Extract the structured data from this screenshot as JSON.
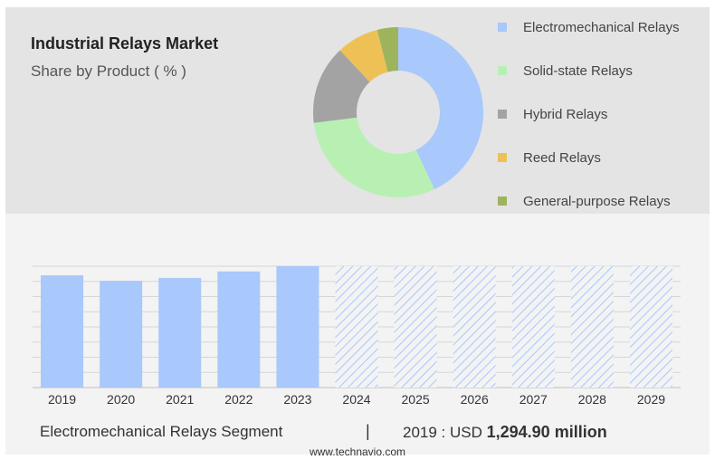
{
  "header": {
    "title": "Industrial Relays Market",
    "subtitle": "Share by Product ( % )"
  },
  "chart_data": [
    {
      "type": "pie",
      "donut": true,
      "slices": [
        {
          "label": "Electromechanical Relays",
          "value": 43,
          "color": "#a9c8fb"
        },
        {
          "label": "Solid-state Relays",
          "value": 30,
          "color": "#b8f0b4"
        },
        {
          "label": "Hybrid Relays",
          "value": 15,
          "color": "#a3a3a3"
        },
        {
          "label": "Reed Relays",
          "value": 8,
          "color": "#eec156"
        },
        {
          "label": "General-purpose Relays",
          "value": 4,
          "color": "#9db45d"
        }
      ],
      "legend_position": "right"
    },
    {
      "type": "bar",
      "categories": [
        "2019",
        "2020",
        "2021",
        "2022",
        "2023",
        "2024",
        "2025",
        "2026",
        "2027",
        "2028",
        "2029"
      ],
      "values": [
        1294.9,
        1232,
        1265,
        1340,
        1400,
        null,
        null,
        null,
        null,
        null,
        null
      ],
      "forecast_from": "2024",
      "bar_color": "#a9c8fb",
      "forecast_pattern_color": "#a9c8fb",
      "grid": true
    }
  ],
  "segment": {
    "name": "Electromechanical Relays Segment",
    "separator": "|",
    "year_label": "2019 : USD",
    "value": "1,294.90 million"
  },
  "footer": {
    "source": "www.technavio.com"
  }
}
